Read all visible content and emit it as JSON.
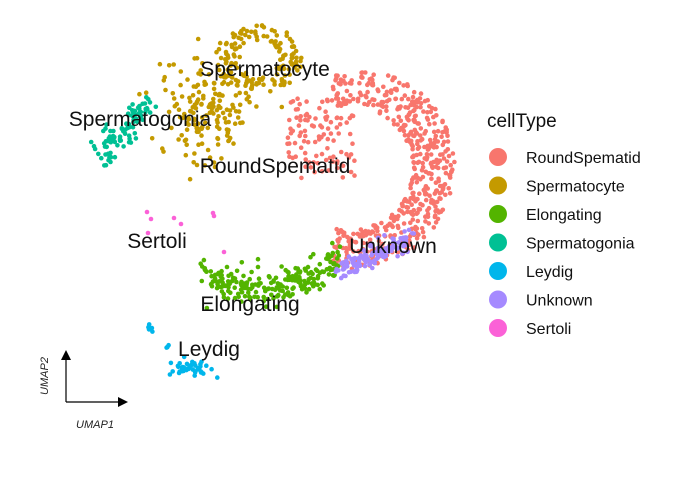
{
  "chart_data": {
    "type": "scatter",
    "xlabel": "UMAP1",
    "ylabel": "UMAP2",
    "legend": {
      "title": "cellType",
      "placement": "right"
    },
    "series": [
      {
        "name": "RoundSpematid",
        "color": "#F8766D"
      },
      {
        "name": "Spermatocyte",
        "color": "#C49A00"
      },
      {
        "name": "Elongating",
        "color": "#53B400"
      },
      {
        "name": "Spermatogonia",
        "color": "#00C094"
      },
      {
        "name": "Leydig",
        "color": "#00B6EB"
      },
      {
        "name": "Unknown",
        "color": "#A58AFF"
      },
      {
        "name": "Sertoli",
        "color": "#FB61D7"
      }
    ],
    "cluster_labels": [
      {
        "text": "Spermatocyte"
      },
      {
        "text": "Spermatogonia"
      },
      {
        "text": "RoundSpematid"
      },
      {
        "text": "Sertoli"
      },
      {
        "text": "Unknown"
      },
      {
        "text": "Elongating"
      },
      {
        "text": "Leydig"
      }
    ]
  }
}
